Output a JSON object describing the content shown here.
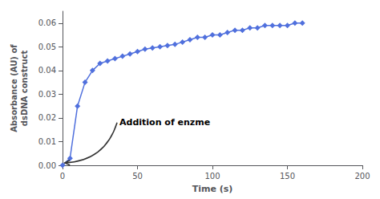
{
  "chart_data": {
    "type": "line",
    "xlabel": "Time (s)",
    "ylabel": "Absorbance (AU) of\ndsDNA construct",
    "x": [
      0,
      5,
      10,
      15,
      20,
      25,
      30,
      35,
      40,
      45,
      50,
      55,
      60,
      65,
      70,
      75,
      80,
      85,
      90,
      95,
      100,
      105,
      110,
      115,
      120,
      125,
      130,
      135,
      140,
      145,
      150,
      155,
      160
    ],
    "values": [
      0.0,
      0.003,
      0.025,
      0.035,
      0.04,
      0.043,
      0.044,
      0.045,
      0.046,
      0.047,
      0.048,
      0.049,
      0.0495,
      0.05,
      0.0505,
      0.051,
      0.052,
      0.053,
      0.054,
      0.054,
      0.055,
      0.055,
      0.056,
      0.057,
      0.057,
      0.058,
      0.058,
      0.059,
      0.059,
      0.059,
      0.059,
      0.06,
      0.06
    ],
    "marker": "diamond",
    "xlim": [
      0,
      200
    ],
    "ylim": [
      0,
      0.065
    ],
    "xticks": [
      0,
      50,
      100,
      150,
      200
    ],
    "yticks": [
      {
        "value": 0,
        "label": "0.00"
      },
      {
        "value": 0.01,
        "label": "0.01"
      },
      {
        "value": 0.02,
        "label": "0.02"
      },
      {
        "value": 0.03,
        "label": "0.03"
      },
      {
        "value": 0.04,
        "label": "0.04"
      },
      {
        "value": 0.05,
        "label": "0.05"
      },
      {
        "value": 0.06,
        "label": "0.06"
      }
    ],
    "grid": false,
    "annotations": [
      {
        "text": "Addition of enzme",
        "xy": [
          1.5,
          0.001
        ],
        "xytext": [
          38,
          0.018
        ]
      }
    ]
  }
}
